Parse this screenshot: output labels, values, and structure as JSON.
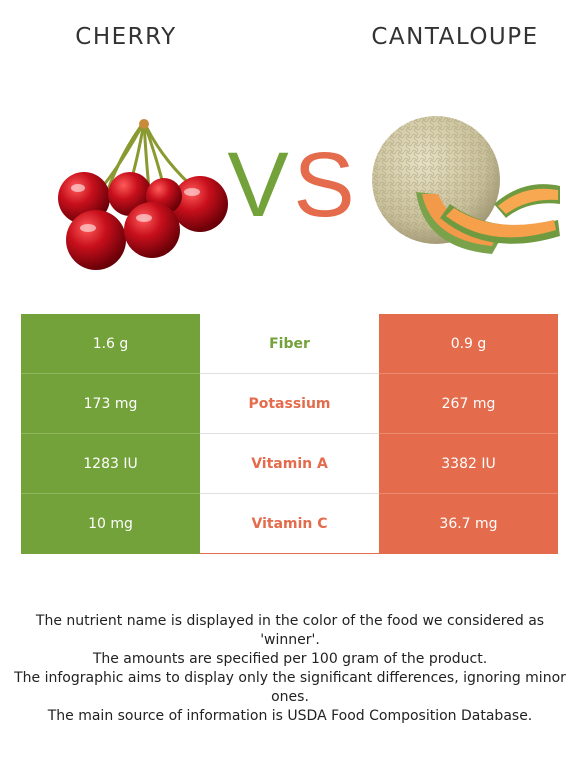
{
  "foods": {
    "left_name": "CHERRY",
    "right_name": "CANTALOUPE"
  },
  "vs": {
    "v_letter": "V",
    "s_letter": "S",
    "v_color": "#73a13a",
    "s_color": "#e46b4b"
  },
  "colors": {
    "left_winner": "#73a13a",
    "right_winner": "#e46b4b"
  },
  "rows": [
    {
      "nutrient": "Fiber",
      "left": "1.6 g",
      "right": "0.9 g",
      "winner": "left"
    },
    {
      "nutrient": "Potassium",
      "left": "173 mg",
      "right": "267 mg",
      "winner": "right"
    },
    {
      "nutrient": "Vitamin A",
      "left": "1283 IU",
      "right": "3382 IU",
      "winner": "right"
    },
    {
      "nutrient": "Vitamin C",
      "left": "10 mg",
      "right": "36.7 mg",
      "winner": "right"
    }
  ],
  "notes": [
    "The nutrient name is displayed in the color of the food we considered as 'winner'.",
    "The amounts are specified per 100 gram of the product.",
    "The infographic aims to display only the significant differences, ignoring minor ones.",
    "The main source of information is USDA Food Composition Database."
  ]
}
